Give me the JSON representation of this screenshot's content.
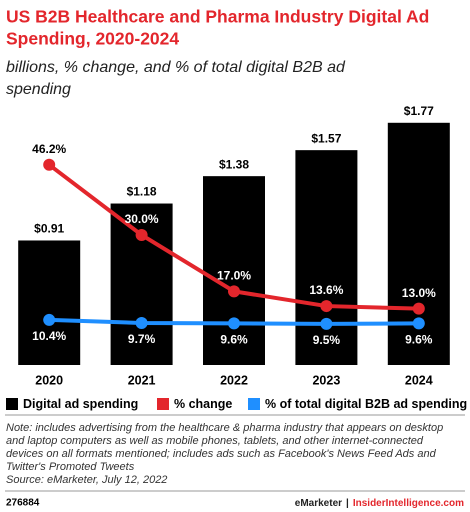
{
  "chart_data": {
    "type": "bar_line",
    "title": [
      "US B2B Healthcare and Pharma Industry Digital Ad",
      "Spending, 2020-2024"
    ],
    "subtitle": [
      "billions, % change, and % of total digital B2B ad",
      "spending"
    ],
    "categories": [
      "2020",
      "2021",
      "2022",
      "2023",
      "2024"
    ],
    "series": [
      {
        "name": "Digital ad spending",
        "color": "#000000",
        "type": "bar",
        "values": [
          0.91,
          1.18,
          1.38,
          1.57,
          1.77
        ],
        "value_labels": [
          "$0.91",
          "$1.18",
          "$1.38",
          "$1.57",
          "$1.77"
        ]
      },
      {
        "name": "% change",
        "color": "#e3262c",
        "type": "line",
        "axis": "y2",
        "values": [
          46.2,
          30.0,
          17.0,
          13.6,
          13.0
        ],
        "value_labels": [
          "46.2%",
          "30.0%",
          "17.0%",
          "13.6%",
          "13.0%"
        ]
      },
      {
        "name": "% of total digital B2B ad spending",
        "color": "#1f8fff",
        "type": "line",
        "axis": "y2",
        "values": [
          10.4,
          9.7,
          9.6,
          9.5,
          9.6
        ],
        "value_labels": [
          "10.4%",
          "9.7%",
          "9.6%",
          "9.5%",
          "9.6%"
        ]
      }
    ],
    "ylim": [
      0,
      1.9
    ],
    "y2lim": [
      0,
      60
    ],
    "legend": "bottom"
  },
  "notes": [
    "Note: includes advertising from the healthcare & pharma industry that appears on desktop",
    "and laptop computers as well as mobile phones, tablets, and other internet-connected",
    "devices on all formats mentioned; includes ads such as Facebook's News Feed Ads and",
    "Twitter's Promoted Tweets",
    "Source: eMarketer, July 12, 2022"
  ],
  "footer": {
    "id": "276884",
    "brand": "eMarketer",
    "separator": "|",
    "site": "InsiderIntelligence.com"
  }
}
